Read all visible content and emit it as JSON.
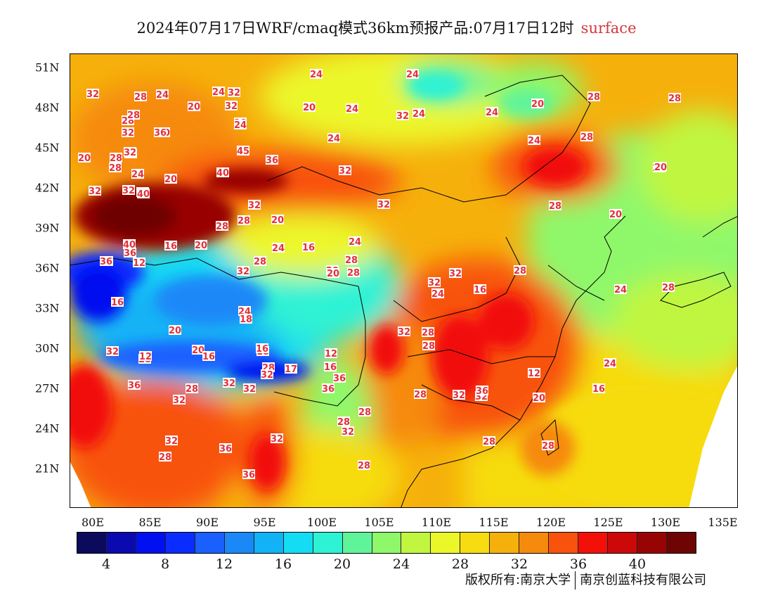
{
  "title": "2024年07月17日WRF/cmaq模式36km预报产品:07月17日12时",
  "title_suffix": "surface",
  "lat_labels": [
    "51N",
    "48N",
    "45N",
    "42N",
    "39N",
    "36N",
    "33N",
    "30N",
    "27N",
    "24N",
    "21N"
  ],
  "lon_labels": [
    "80E",
    "85E",
    "90E",
    "95E",
    "100E",
    "105E",
    "110E",
    "115E",
    "120E",
    "125E",
    "130E",
    "135E"
  ],
  "colorbar": {
    "colors": [
      "#0c0a5c",
      "#0a0ab0",
      "#0010f0",
      "#0b2cff",
      "#1a60ff",
      "#1b88f8",
      "#12b2f6",
      "#14dcf4",
      "#2ef2d4",
      "#60f49a",
      "#8ef86a",
      "#c0f640",
      "#ecf72a",
      "#f6dc10",
      "#f6b00c",
      "#f68a0c",
      "#f8520c",
      "#f21008",
      "#cc0808",
      "#980404",
      "#6e0404"
    ],
    "labels": [
      "4",
      "8",
      "12",
      "16",
      "20",
      "24",
      "28",
      "32",
      "36",
      "40"
    ]
  },
  "contour_labels": [
    "24",
    "24",
    "32",
    "28",
    "24",
    "24",
    "32",
    "20",
    "20",
    "24",
    "32",
    "24",
    "20",
    "28",
    "24",
    "20",
    "28",
    "28",
    "20",
    "24",
    "28",
    "32",
    "28",
    "24",
    "32",
    "36",
    "20",
    "28",
    "32",
    "45",
    "24",
    "28",
    "32",
    "28",
    "24",
    "32",
    "36",
    "32",
    "28",
    "20",
    "20",
    "40",
    "32",
    "32",
    "36",
    "20",
    "40",
    "32",
    "28",
    "20",
    "28",
    "24",
    "28",
    "20",
    "32",
    "16",
    "24",
    "16",
    "28",
    "40",
    "20",
    "36",
    "32",
    "12",
    "36",
    "28",
    "32",
    "20",
    "24",
    "16",
    "28",
    "24",
    "32",
    "16",
    "28",
    "32",
    "28",
    "20",
    "20",
    "24",
    "18",
    "28",
    "20",
    "18",
    "32",
    "28",
    "16",
    "16",
    "12",
    "12",
    "16",
    "28",
    "32",
    "17",
    "32",
    "12",
    "20",
    "16",
    "24",
    "28",
    "32",
    "32",
    "36",
    "36",
    "36",
    "32",
    "28",
    "28",
    "32",
    "28",
    "32",
    "28",
    "28",
    "32",
    "36",
    "36",
    "32",
    "28",
    "28",
    "36"
  ],
  "copyright": {
    "left": "版权所有:南京大学",
    "right": "南京创蓝科技有限公司"
  }
}
